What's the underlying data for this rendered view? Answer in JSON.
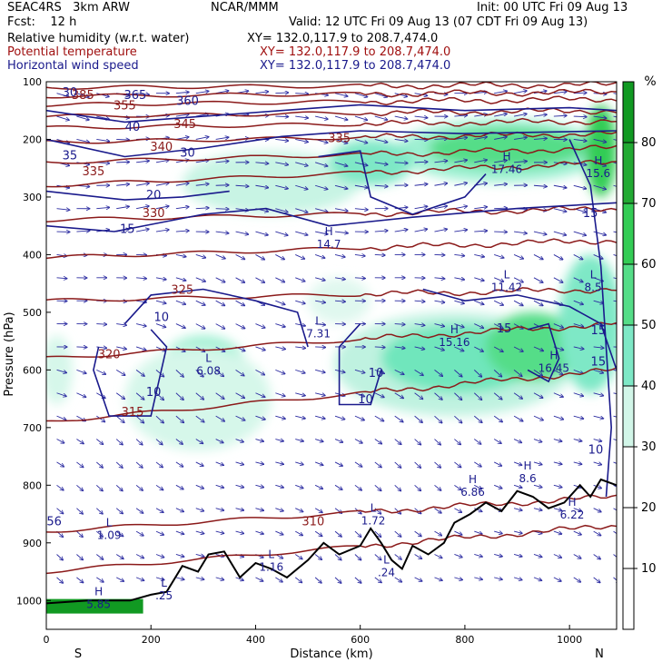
{
  "header": {
    "model": "SEAC4RS   3km ARW",
    "org": "NCAR/MMM",
    "init": "Init: 00 UTC Fri 09 Aug 13",
    "fcst": "Fcst:    12 h",
    "valid": "Valid: 12 UTC Fri 09 Aug 13 (07 CDT Fri 09 Aug 13)",
    "fields": [
      {
        "name": "Relative humidity (w.r.t. water)",
        "xy": "XY= 132.0,117.9 to 208.7,474.0",
        "color": "#000000"
      },
      {
        "name": "Potential temperature",
        "xy": "XY= 132.0,117.9 to 208.7,474.0",
        "color": "#a01010"
      },
      {
        "name": "Horizontal wind speed",
        "xy": "XY= 132.0,117.9 to 208.7,474.0",
        "color": "#1a1a8c"
      }
    ]
  },
  "chart_data": {
    "type": "cross-section",
    "xlabel": "Distance (km)",
    "ylabel": "Pressure (hPa)",
    "xlim": [
      0,
      1090
    ],
    "ylim": [
      1050,
      100
    ],
    "x_ticks": [
      0,
      200,
      400,
      600,
      800,
      1000
    ],
    "y_ticks": [
      100,
      200,
      300,
      400,
      500,
      600,
      700,
      800,
      900,
      1000
    ],
    "left_end_label": "S",
    "right_end_label": "N",
    "colorbar": {
      "unit": "%",
      "levels": [
        10,
        20,
        30,
        40,
        50,
        60,
        70,
        80
      ],
      "colors": [
        "#ffffff",
        "#ffffff",
        "#ffffff",
        "#d2f6e8",
        "#7ee8c6",
        "#55dd88",
        "#33cc55",
        "#22aa33",
        "#119922"
      ]
    },
    "theta_labels": [
      {
        "x": 150,
        "p": 148,
        "text": "355"
      },
      {
        "x": 90,
        "p": 262,
        "text": "335"
      },
      {
        "x": 205,
        "p": 335,
        "text": "330"
      },
      {
        "x": 260,
        "p": 468,
        "text": "325"
      },
      {
        "x": 120,
        "p": 580,
        "text": "320"
      },
      {
        "x": 165,
        "p": 680,
        "text": "315"
      },
      {
        "x": 510,
        "p": 870,
        "text": "310"
      },
      {
        "x": 560,
        "p": 205,
        "text": "335"
      },
      {
        "x": 70,
        "p": 130,
        "text": "385"
      },
      {
        "x": 265,
        "p": 180,
        "text": "345"
      },
      {
        "x": 220,
        "p": 220,
        "text": "340"
      }
    ],
    "wind_labels": [
      {
        "x": 45,
        "p": 125,
        "text": "30"
      },
      {
        "x": 165,
        "p": 185,
        "text": "40"
      },
      {
        "x": 45,
        "p": 235,
        "text": "35"
      },
      {
        "x": 270,
        "p": 230,
        "text": "30"
      },
      {
        "x": 205,
        "p": 303,
        "text": "20"
      },
      {
        "x": 155,
        "p": 362,
        "text": "15"
      },
      {
        "x": 220,
        "p": 515,
        "text": "10"
      },
      {
        "x": 205,
        "p": 645,
        "text": "10"
      },
      {
        "x": 630,
        "p": 612,
        "text": "10"
      },
      {
        "x": 610,
        "p": 658,
        "text": "10"
      },
      {
        "x": 1040,
        "p": 335,
        "text": "15"
      },
      {
        "x": 875,
        "p": 535,
        "text": "15"
      },
      {
        "x": 1055,
        "p": 538,
        "text": "15"
      },
      {
        "x": 1055,
        "p": 592,
        "text": "15"
      },
      {
        "x": 1050,
        "p": 745,
        "text": "10"
      },
      {
        "x": 270,
        "p": 140,
        "text": "360"
      },
      {
        "x": 170,
        "p": 130,
        "text": "365"
      }
    ],
    "extrema": [
      {
        "x": 540,
        "p": 385,
        "kind": "H",
        "value": "14.7"
      },
      {
        "x": 880,
        "p": 255,
        "kind": "H",
        "value": "17.46"
      },
      {
        "x": 1055,
        "p": 262,
        "kind": "H",
        "value": "15.6"
      },
      {
        "x": 880,
        "p": 460,
        "kind": "L",
        "value": "11.42"
      },
      {
        "x": 1045,
        "p": 460,
        "kind": "L",
        "value": "8.5"
      },
      {
        "x": 520,
        "p": 540,
        "kind": "L",
        "value": "7.31"
      },
      {
        "x": 780,
        "p": 555,
        "kind": "H",
        "value": "15.16"
      },
      {
        "x": 970,
        "p": 600,
        "kind": "H",
        "value": "16.45"
      },
      {
        "x": 310,
        "p": 605,
        "kind": "L",
        "value": "6.08"
      },
      {
        "x": 815,
        "p": 815,
        "kind": "H",
        "value": "6.86"
      },
      {
        "x": 920,
        "p": 792,
        "kind": "H",
        "value": "8.6"
      },
      {
        "x": 1005,
        "p": 855,
        "kind": "H",
        "value": "6.22"
      },
      {
        "x": 625,
        "p": 865,
        "kind": "L",
        "value": "1.72"
      },
      {
        "x": 120,
        "p": 890,
        "kind": "L",
        "value": "1.09"
      },
      {
        "x": 430,
        "p": 945,
        "kind": "L",
        "value": "1.16"
      },
      {
        "x": 650,
        "p": 955,
        "kind": "L",
        "value": ".24"
      },
      {
        "x": 225,
        "p": 995,
        "kind": "L",
        "value": ".25"
      },
      {
        "x": 100,
        "p": 1010,
        "kind": "H",
        "value": "5.85"
      }
    ],
    "misc_labels": [
      {
        "x": 15,
        "p": 870,
        "text": "56"
      }
    ]
  }
}
